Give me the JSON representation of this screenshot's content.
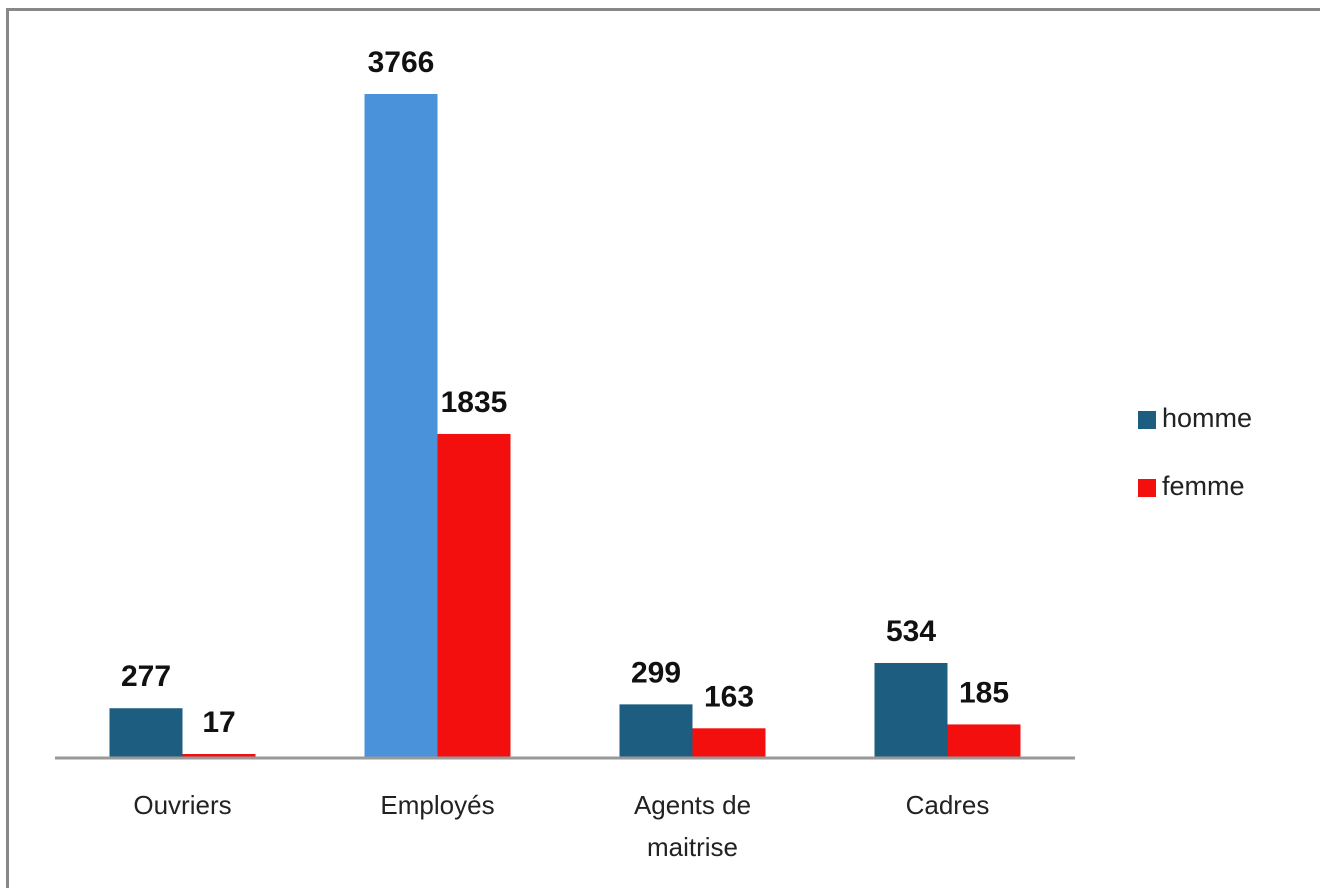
{
  "chart_data": {
    "type": "bar",
    "categories": [
      "Ouvriers",
      "Employés",
      "Agents de maitrise",
      "Cadres"
    ],
    "series": [
      {
        "name": "homme",
        "color": "#1d5d80",
        "colors": [
          "#1d5d80",
          "#4a93da",
          "#1d5d80",
          "#1d5d80"
        ],
        "values": [
          277,
          3766,
          299,
          534
        ]
      },
      {
        "name": "femme",
        "color": "#f40f0f",
        "colors": [
          "#f40f0f",
          "#f40f0f",
          "#f40f0f",
          "#f40f0f"
        ],
        "values": [
          17,
          1835,
          163,
          185
        ]
      }
    ],
    "legend": "right"
  }
}
